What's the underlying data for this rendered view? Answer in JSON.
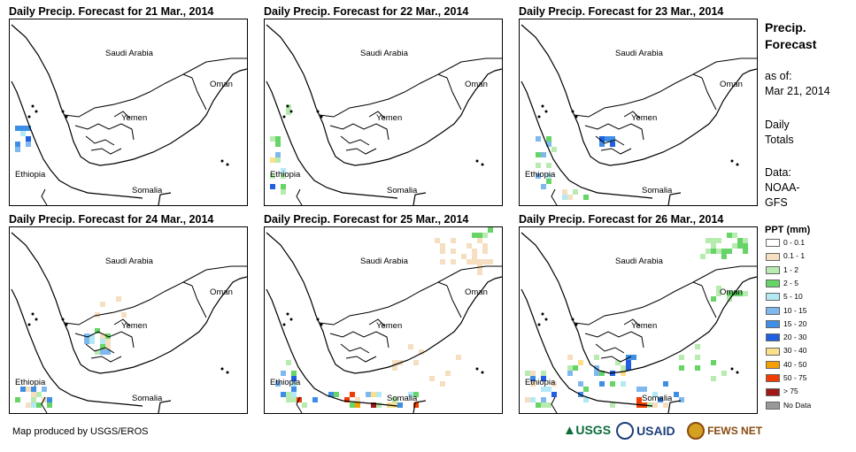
{
  "panels": [
    {
      "title": "Daily Precip. Forecast for 21 Mar., 2014",
      "intensity": 1
    },
    {
      "title": "Daily Precip. Forecast for 22 Mar., 2014",
      "intensity": 2
    },
    {
      "title": "Daily Precip. Forecast for 23 Mar., 2014",
      "intensity": 3
    },
    {
      "title": "Daily Precip. Forecast for 24 Mar., 2014",
      "intensity": 3
    },
    {
      "title": "Daily Precip. Forecast for 25 Mar., 2014",
      "intensity": 4
    },
    {
      "title": "Daily Precip. Forecast for 26 Mar., 2014",
      "intensity": 5
    }
  ],
  "map_labels": {
    "saudi": "Saudi Arabia",
    "oman": "Oman",
    "yemen": "Yemen",
    "ethiopia": "Ethiopia",
    "somalia": "Somalia"
  },
  "side": {
    "title_line1": "Precip.",
    "title_line2": "Forecast",
    "asof_label": "as of:",
    "asof_date": "Mar 21, 2014",
    "period_line1": "Daily",
    "period_line2": "Totals",
    "data_label": "Data:",
    "data_line1": "NOAA-",
    "data_line2": "GFS"
  },
  "legend": {
    "title": "PPT (mm)",
    "items": [
      {
        "label": "0 - 0.1",
        "color": "#ffffff"
      },
      {
        "label": "0.1 - 1",
        "color": "#f5dfc0"
      },
      {
        "label": "1 - 2",
        "color": "#b8ebb0"
      },
      {
        "label": "2 - 5",
        "color": "#66d466"
      },
      {
        "label": "5 - 10",
        "color": "#b3e8f5"
      },
      {
        "label": "10 - 15",
        "color": "#7fb8ee"
      },
      {
        "label": "15 - 20",
        "color": "#3f8ee6"
      },
      {
        "label": "20 - 30",
        "color": "#1f5fe0"
      },
      {
        "label": "30 - 40",
        "color": "#fae08a"
      },
      {
        "label": "40 - 50",
        "color": "#f5a000"
      },
      {
        "label": "50 - 75",
        "color": "#f03c00"
      },
      {
        "label": "> 75",
        "color": "#a01818"
      },
      {
        "label": "No Data",
        "color": "#999999"
      }
    ]
  },
  "credit": "Map produced by USGS/EROS",
  "logos": {
    "usgs": "USGS",
    "usaid": "USAID",
    "fewsnet": "FEWS NET"
  }
}
